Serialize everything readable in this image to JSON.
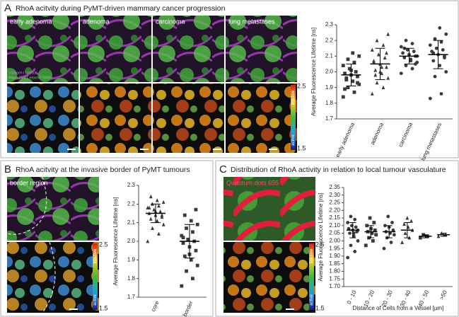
{
  "panels": [
    {
      "letter": "A",
      "title": "RhoA acitvity during PyMT-driven mammary cancer progression",
      "image_labels": [
        "early adenoma",
        "adenoma",
        "carcinoma",
        "lung metastases"
      ],
      "channel_labels": [
        "collagen I (SHG)",
        "RhoA-FRET reporter (GFP)"
      ],
      "colorbar": {
        "max": 2.5,
        "min": 1.5,
        "high_label": "inactive",
        "low_label": "active"
      }
    },
    {
      "letter": "B",
      "title": "RhoA acitvity at the invasive border of PyMT tumours",
      "image_labels": [
        "border region"
      ],
      "colorbar": {
        "max": 2.5,
        "min": 1.5,
        "high_label": "inactive",
        "low_label": "active"
      }
    },
    {
      "letter": "C",
      "title": "Distribution of RhoA activity in relation to local tumour vasculature",
      "image_labels": [
        "Quantum dots 655"
      ],
      "colorbar": {
        "max": 2.5,
        "min": 1.5,
        "high_label": "inactive",
        "low_label": "active"
      }
    }
  ],
  "chart_data": [
    {
      "type": "dot",
      "ylabel": "Average Fluorescence Lifetime [ns]",
      "categories": [
        "early adenoma",
        "adenoma",
        "carcinoma",
        "lung metastases"
      ],
      "markers": [
        "square",
        "triangle",
        "circle",
        "circle"
      ],
      "color": "#3a3a3a",
      "points": [
        [
          1.84,
          1.87,
          1.9,
          1.92,
          1.94,
          1.96,
          1.97,
          1.98,
          1.99,
          2.0,
          2.02,
          2.04,
          2.06,
          2.08,
          2.1,
          2.12,
          1.95,
          1.93,
          2.01,
          1.89
        ],
        [
          1.86,
          1.9,
          1.93,
          1.96,
          1.99,
          2.01,
          2.03,
          2.05,
          2.07,
          2.09,
          2.11,
          2.14,
          2.17,
          2.2,
          2.24,
          2.03,
          1.98,
          2.12,
          2.0,
          2.06
        ],
        [
          1.99,
          2.02,
          2.04,
          2.06,
          2.08,
          2.09,
          2.1,
          2.11,
          2.12,
          2.13,
          2.14,
          2.16,
          2.18,
          2.2,
          2.1,
          2.07,
          2.15,
          2.05
        ],
        [
          1.83,
          1.86,
          1.97,
          2.0,
          2.04,
          2.07,
          2.09,
          2.11,
          2.13,
          2.14,
          2.15,
          2.17,
          2.19,
          2.21,
          2.24,
          2.28,
          2.12,
          2.1
        ]
      ],
      "mean": [
        1.98,
        2.05,
        2.1,
        2.11
      ],
      "sd": [
        0.07,
        0.1,
        0.05,
        0.09
      ],
      "ylim": [
        1.7,
        2.3
      ],
      "yticks": [
        {
          "value": 1.7,
          "label": "1.7"
        },
        {
          "value": 1.8,
          "label": "1.8"
        },
        {
          "value": 1.9,
          "label": "1.9"
        },
        {
          "value": 2,
          "label": "2.0"
        },
        {
          "value": 2.1,
          "label": "2.1"
        },
        {
          "value": 2.2,
          "label": "2.2"
        },
        {
          "value": 2.3,
          "label": "2.3"
        }
      ]
    },
    {
      "type": "dot",
      "ylabel": "Average Fluorescence Lifetime [ns]",
      "categories": [
        "core",
        "border"
      ],
      "markers": [
        "triangle",
        "square"
      ],
      "color": "#3a3a3a",
      "points": [
        [
          2.0,
          2.04,
          2.07,
          2.09,
          2.11,
          2.12,
          2.13,
          2.14,
          2.15,
          2.16,
          2.17,
          2.18,
          2.19,
          2.2,
          2.21,
          2.22,
          2.24,
          2.14,
          2.16,
          2.18
        ],
        [
          1.76,
          1.8,
          1.84,
          1.87,
          1.9,
          1.92,
          1.95,
          1.97,
          1.99,
          2.0,
          2.01,
          2.03,
          2.05,
          2.07,
          2.09,
          2.11,
          2.14,
          2.17,
          1.93,
          2.02
        ]
      ],
      "mean": [
        2.15,
        2.0
      ],
      "sd": [
        0.05,
        0.09
      ],
      "ylim": [
        1.7,
        2.3
      ],
      "yticks": [
        {
          "value": 1.7,
          "label": "1.7"
        },
        {
          "value": 1.8,
          "label": "1.8"
        },
        {
          "value": 1.9,
          "label": "1.9"
        },
        {
          "value": 2,
          "label": "2.0"
        },
        {
          "value": 2.1,
          "label": "2.1"
        },
        {
          "value": 2.2,
          "label": "2.2"
        },
        {
          "value": 2.3,
          "label": "2.3"
        }
      ]
    },
    {
      "type": "dot",
      "ylabel": "Average Fluorescence Lifetime [ns]",
      "xlabel": "Distance of Cells from a Vessel [µm]",
      "categories": [
        "0 - 10",
        "10 - 20",
        "20 - 30",
        "30 - 40",
        "40 - 50",
        ">50"
      ],
      "markers": [
        "circle",
        "square",
        "circle",
        "triangle",
        "square",
        "triangle"
      ],
      "color": "#3a3a3a",
      "points": [
        [
          1.89,
          1.93,
          1.97,
          2.0,
          2.03,
          2.05,
          2.06,
          2.07,
          2.08,
          2.09,
          2.1,
          2.12,
          2.14,
          2.16,
          2.07,
          2.05
        ],
        [
          1.97,
          2.0,
          2.02,
          2.04,
          2.05,
          2.06,
          2.07,
          2.08,
          2.1,
          2.12,
          2.15
        ],
        [
          1.95,
          1.99,
          2.02,
          2.04,
          2.05,
          2.06,
          2.07,
          2.09,
          2.1,
          2.12,
          2.16
        ],
        [
          1.99,
          2.02,
          2.05,
          2.07,
          2.09,
          2.11,
          2.13,
          2.15
        ],
        [
          2.02,
          2.03,
          2.04
        ],
        [
          2.03,
          2.04,
          2.05
        ]
      ],
      "mean": [
        2.07,
        2.06,
        2.06,
        2.07,
        2.03,
        2.04
      ],
      "sd": [
        0.05,
        0.04,
        0.04,
        0.05,
        0.01,
        0.01
      ],
      "ylim": [
        1.7,
        2.35
      ],
      "yticks": [
        {
          "value": 1.7,
          "label": "1.70"
        },
        {
          "value": 1.75,
          "label": "1.75"
        },
        {
          "value": 1.8,
          "label": "1.80"
        },
        {
          "value": 1.85,
          "label": "1.85"
        },
        {
          "value": 1.9,
          "label": "1.90"
        },
        {
          "value": 1.95,
          "label": "1.95"
        },
        {
          "value": 2,
          "label": "2.00"
        },
        {
          "value": 2.05,
          "label": "2.05"
        },
        {
          "value": 2.1,
          "label": "2.10"
        },
        {
          "value": 2.15,
          "label": "2.15"
        },
        {
          "value": 2.2,
          "label": "2.20"
        },
        {
          "value": 2.25,
          "label": "2.25"
        },
        {
          "value": 2.3,
          "label": "2.30"
        },
        {
          "value": 2.35,
          "label": "2.35"
        }
      ]
    }
  ]
}
